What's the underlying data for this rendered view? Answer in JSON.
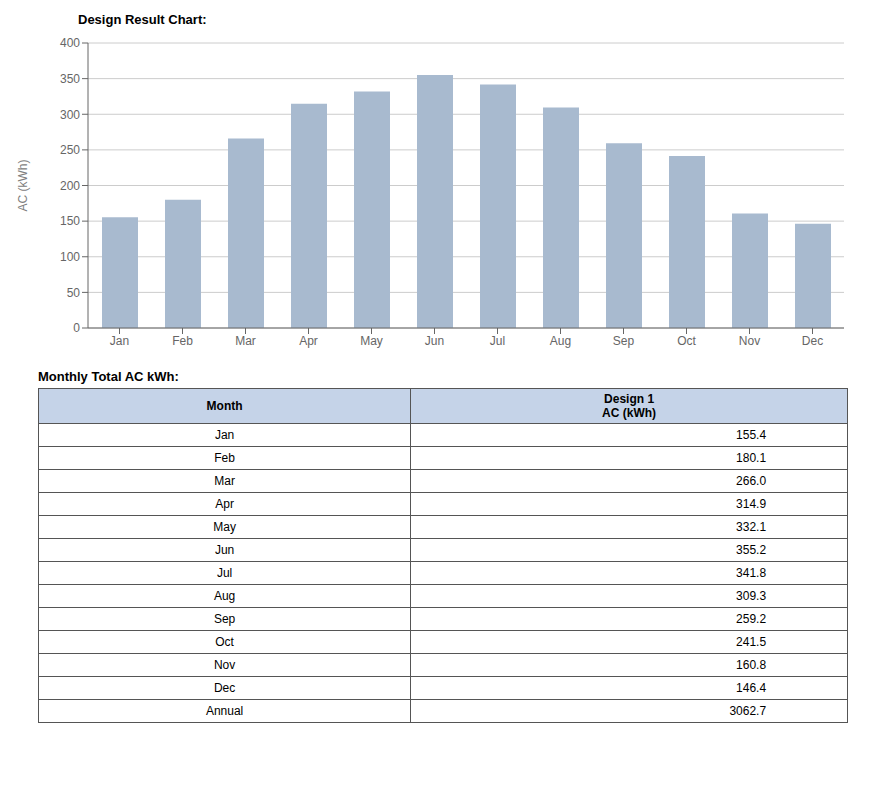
{
  "chart_data": [
    {
      "type": "bar",
      "title": "Design Result Chart:",
      "categories": [
        "Jan",
        "Feb",
        "Mar",
        "Apr",
        "May",
        "Jun",
        "Jul",
        "Aug",
        "Sep",
        "Oct",
        "Nov",
        "Dec"
      ],
      "values": [
        155.4,
        180.1,
        266.0,
        314.9,
        332.1,
        355.2,
        341.8,
        309.3,
        259.2,
        241.5,
        160.8,
        146.4
      ],
      "color": "#a8bacf",
      "ylabel": "AC (kWh)",
      "ylim": [
        0,
        400
      ],
      "yticks": [
        0,
        50,
        100,
        150,
        200,
        250,
        300,
        350,
        400
      ],
      "grid": true
    },
    {
      "type": "table",
      "title": "Monthly Total AC kWh:",
      "columns": [
        "Month",
        "Design 1\nAC (kWh)"
      ],
      "categories": [
        "Jan",
        "Feb",
        "Mar",
        "Apr",
        "May",
        "Jun",
        "Jul",
        "Aug",
        "Sep",
        "Oct",
        "Nov",
        "Dec",
        "Annual"
      ],
      "values": [
        155.4,
        180.1,
        266.0,
        314.9,
        332.1,
        355.2,
        341.8,
        309.3,
        259.2,
        241.5,
        160.8,
        146.4,
        3062.7
      ],
      "color": "#c5d3e8"
    }
  ]
}
